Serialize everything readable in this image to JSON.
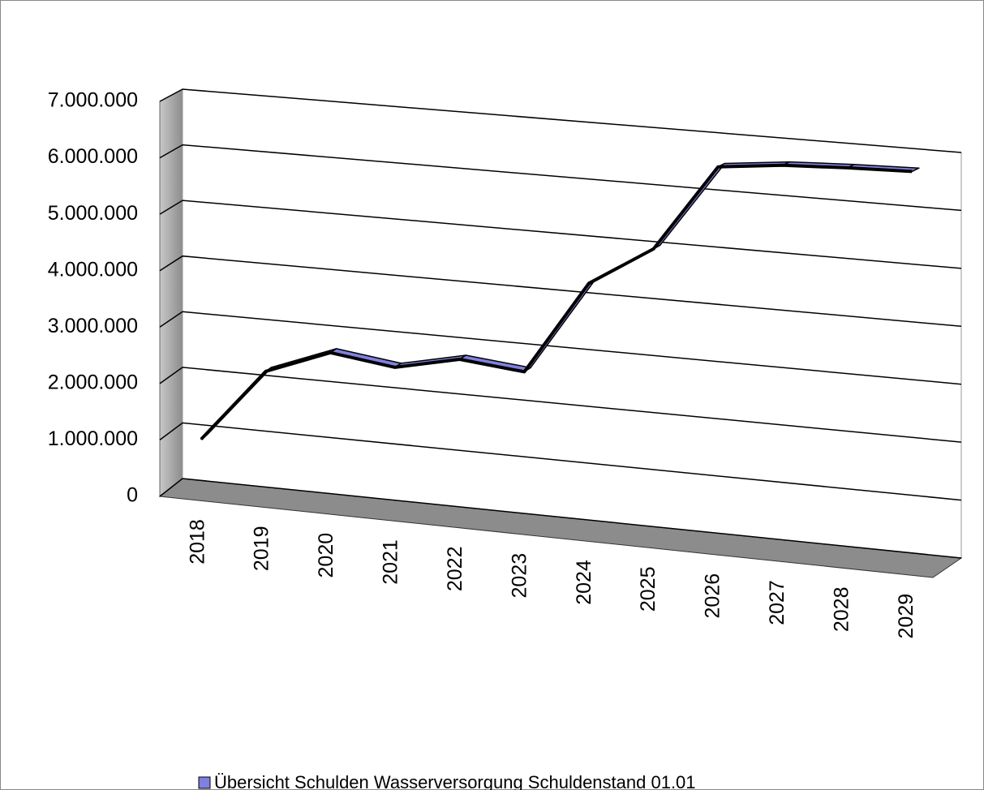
{
  "chart_data": {
    "type": "line3d",
    "categories": [
      "2018",
      "2019",
      "2020",
      "2021",
      "2022",
      "2023",
      "2024",
      "2025",
      "2026",
      "2027",
      "2028",
      "2029"
    ],
    "series": [
      {
        "name": "Übersicht Schulden Wasserversorgung Schuldenstand 01.01",
        "color": "#8080e0",
        "values": [
          950000,
          2270000,
          2710000,
          2560000,
          2810000,
          2700000,
          4350000,
          5050000,
          6570000,
          6690000,
          6740000,
          6770000
        ]
      }
    ],
    "ylim": [
      0,
      7000000
    ],
    "yticks": [
      0,
      {
        "value": 1000000,
        "label": "1.000.000"
      },
      {
        "value": 2000000,
        "label": "2.000.000"
      },
      {
        "value": 3000000,
        "label": "3.000.000"
      },
      {
        "value": 4000000,
        "label": "4.000.000"
      },
      {
        "value": 5000000,
        "label": "5.000.000"
      },
      {
        "value": 6000000,
        "label": "6.000.000"
      },
      {
        "value": 7000000,
        "label": "7.000.000"
      }
    ],
    "grid": true,
    "legend": "bottom"
  }
}
